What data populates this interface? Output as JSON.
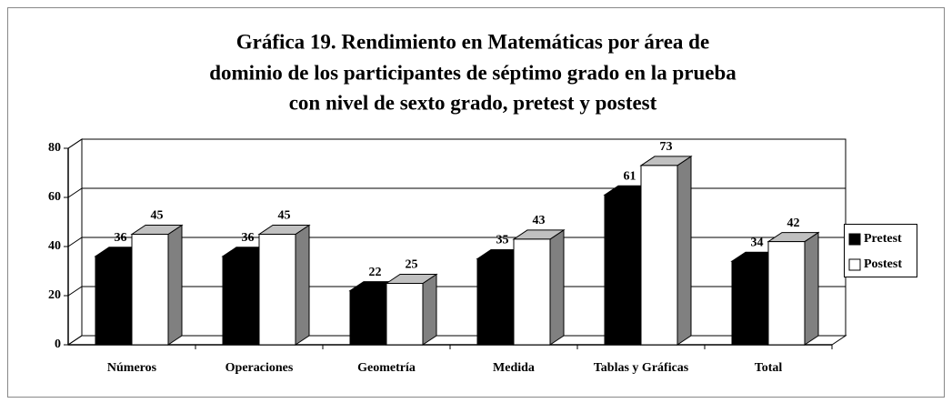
{
  "chart_data": {
    "type": "bar3d",
    "title": [
      "Gráfica 19. Rendimiento en Matemáticas por área de",
      "dominio de los participantes de séptimo grado en la prueba",
      "con nivel de sexto grado, pretest y postest"
    ],
    "categories": [
      "Números",
      "Operaciones",
      "Geometría",
      "Medida",
      "Tablas y Gráficas",
      "Total"
    ],
    "series": [
      {
        "name": "Pretest",
        "color": "#000000",
        "values": [
          36,
          36,
          22,
          35,
          61,
          34
        ]
      },
      {
        "name": "Postest",
        "color": "#ffffff",
        "values": [
          45,
          45,
          25,
          43,
          73,
          42
        ]
      }
    ],
    "ylim": [
      0,
      80
    ],
    "yticks": [
      0,
      20,
      40,
      60,
      80
    ],
    "grid": true,
    "legend": "right"
  }
}
